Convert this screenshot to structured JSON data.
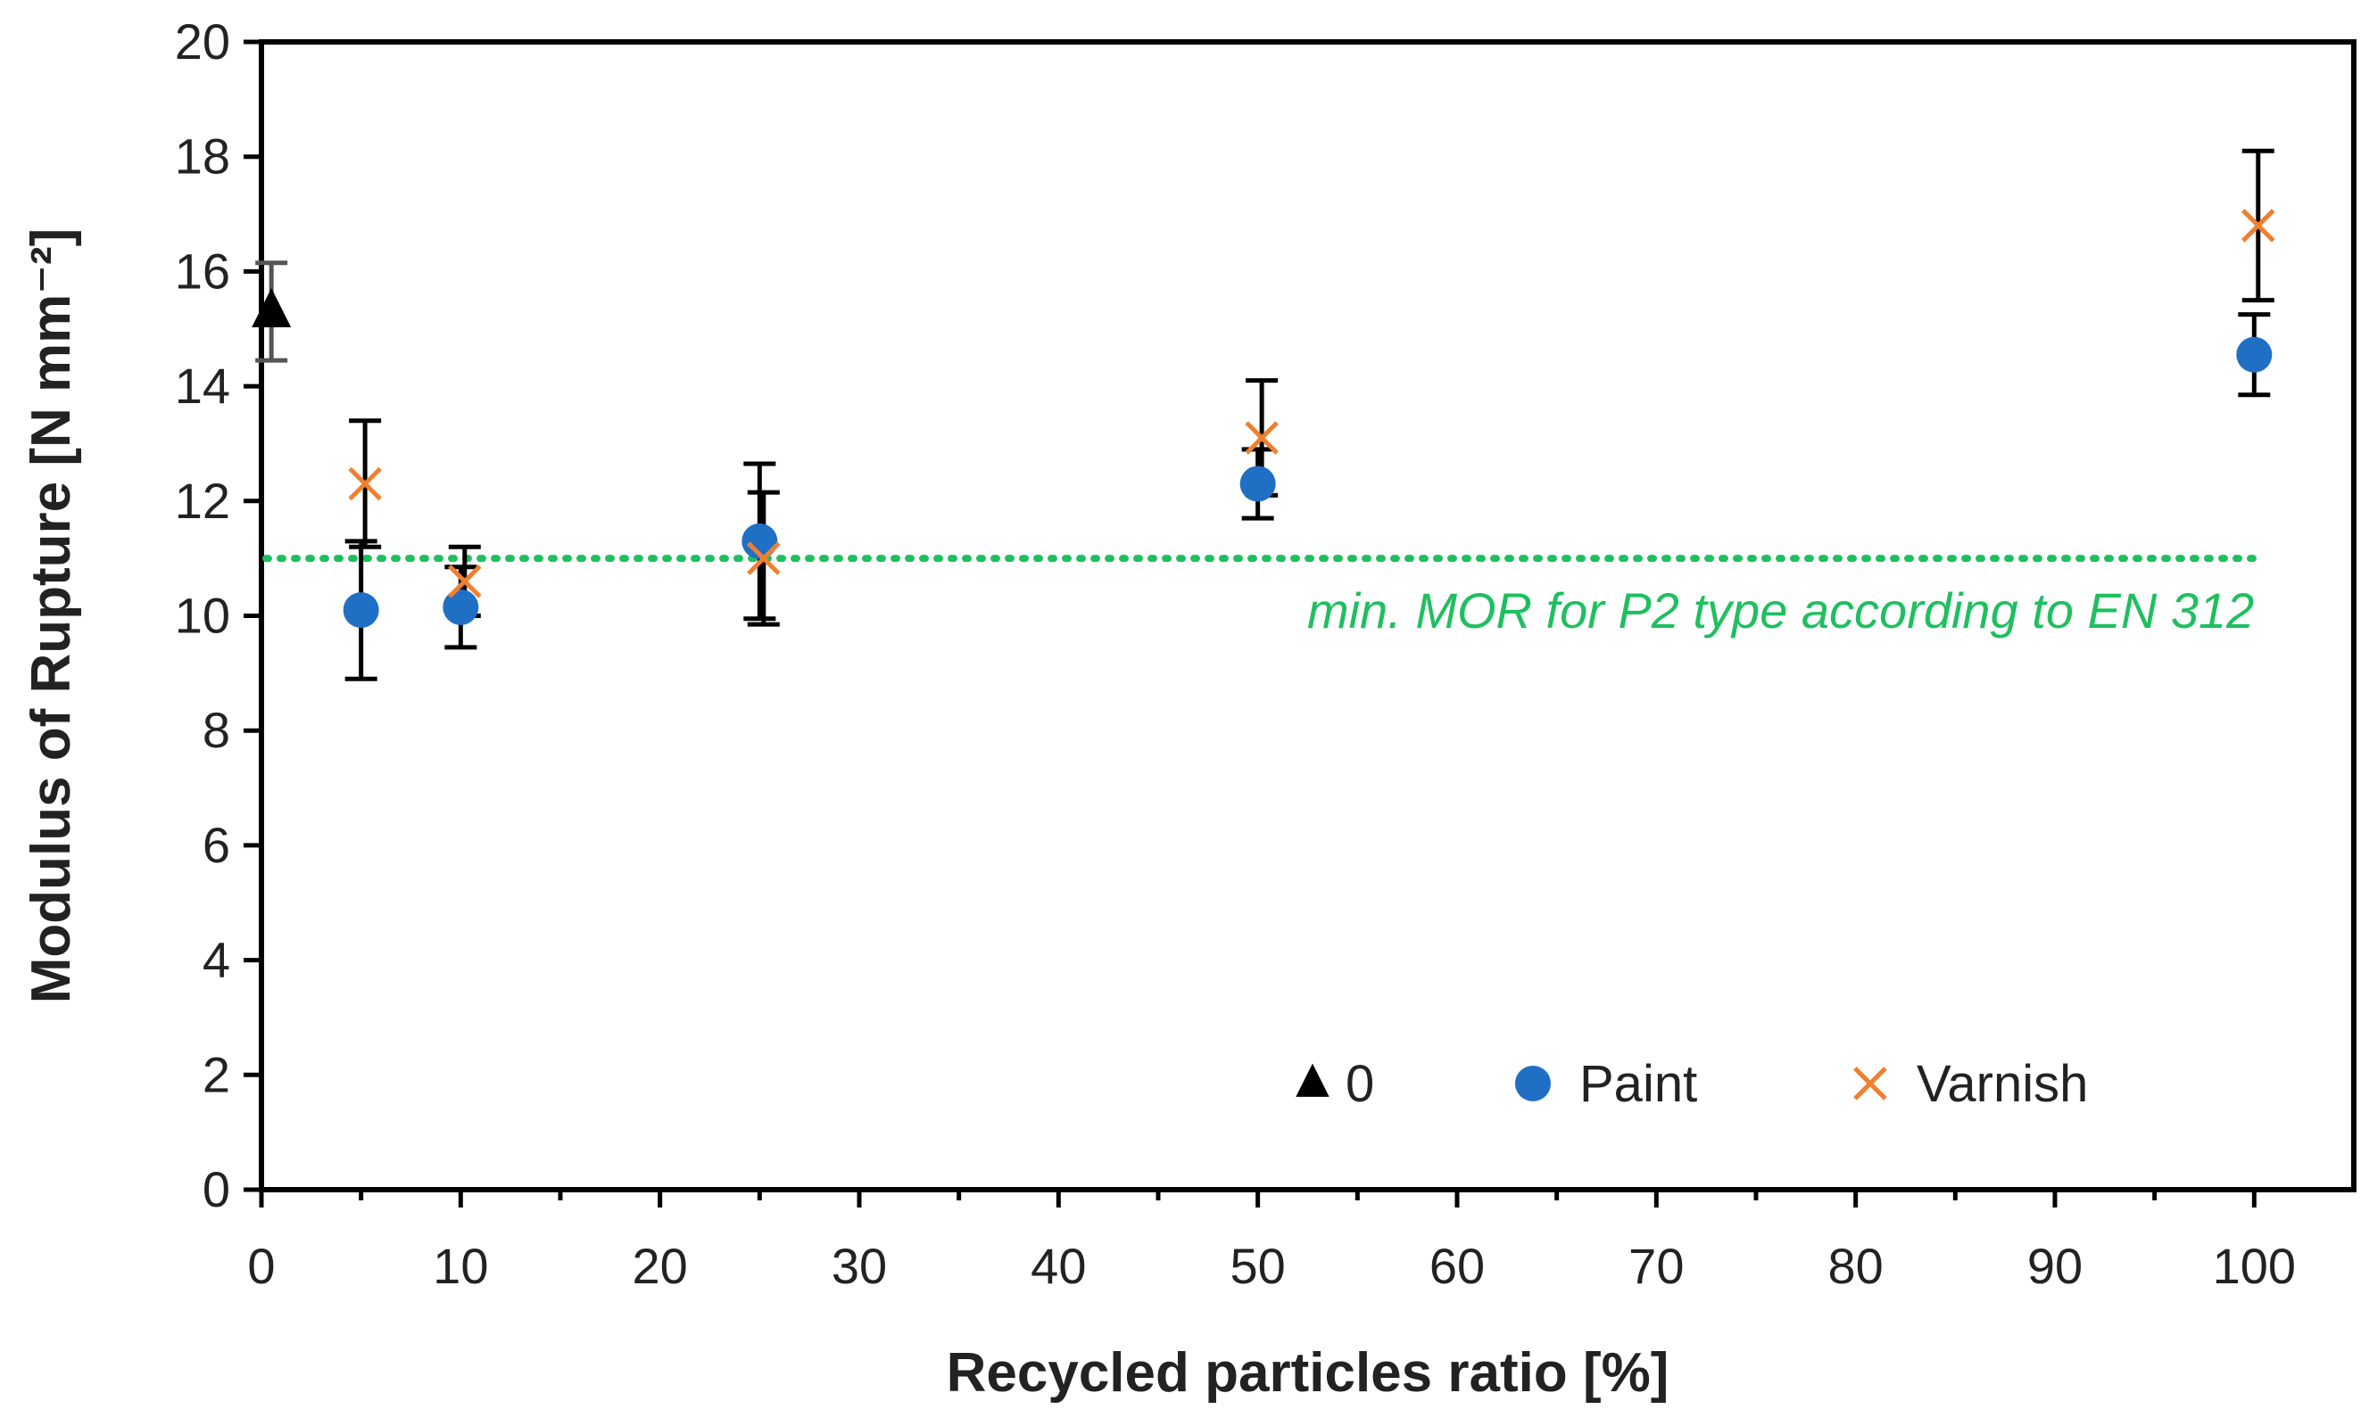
{
  "chart_data": {
    "type": "scatter",
    "xlabel": "Recycled particles ratio [%]",
    "ylabel": "Modulus of Rupture [N mm⁻²]",
    "xlim": [
      0,
      105
    ],
    "ylim": [
      0,
      20
    ],
    "xticks": [
      0,
      10,
      20,
      30,
      40,
      50,
      60,
      70,
      80,
      90,
      100
    ],
    "yticks": [
      0,
      2,
      4,
      6,
      8,
      10,
      12,
      14,
      16,
      18,
      20
    ],
    "grid": false,
    "legend_position": "bottom-right",
    "series": [
      {
        "name": "0",
        "marker": "triangle",
        "color": "#000000",
        "points": [
          {
            "x": 0.5,
            "y": 15.3,
            "err": 0.85
          }
        ]
      },
      {
        "name": "Paint",
        "marker": "circle",
        "color": "#1f6fc5",
        "points": [
          {
            "x": 5,
            "y": 10.1,
            "err": 1.2
          },
          {
            "x": 10,
            "y": 10.15,
            "err": 0.7
          },
          {
            "x": 25,
            "y": 11.3,
            "err": 1.35
          },
          {
            "x": 50,
            "y": 12.3,
            "err": 0.6
          },
          {
            "x": 100,
            "y": 14.55,
            "err": 0.7
          }
        ]
      },
      {
        "name": "Varnish",
        "marker": "x",
        "color": "#f07f30",
        "points": [
          {
            "x": 5.2,
            "y": 12.3,
            "err": 1.1
          },
          {
            "x": 10.2,
            "y": 10.6,
            "err": 0.6
          },
          {
            "x": 25.2,
            "y": 11.0,
            "err": 1.15
          },
          {
            "x": 50.2,
            "y": 13.1,
            "err": 1.0
          },
          {
            "x": 100.2,
            "y": 16.8,
            "err": 1.3
          }
        ]
      }
    ],
    "reference_line": {
      "y": 11,
      "color": "#1fbf60",
      "style": "dotted",
      "label": "min. MOR for P2 type according to EN 312"
    }
  }
}
